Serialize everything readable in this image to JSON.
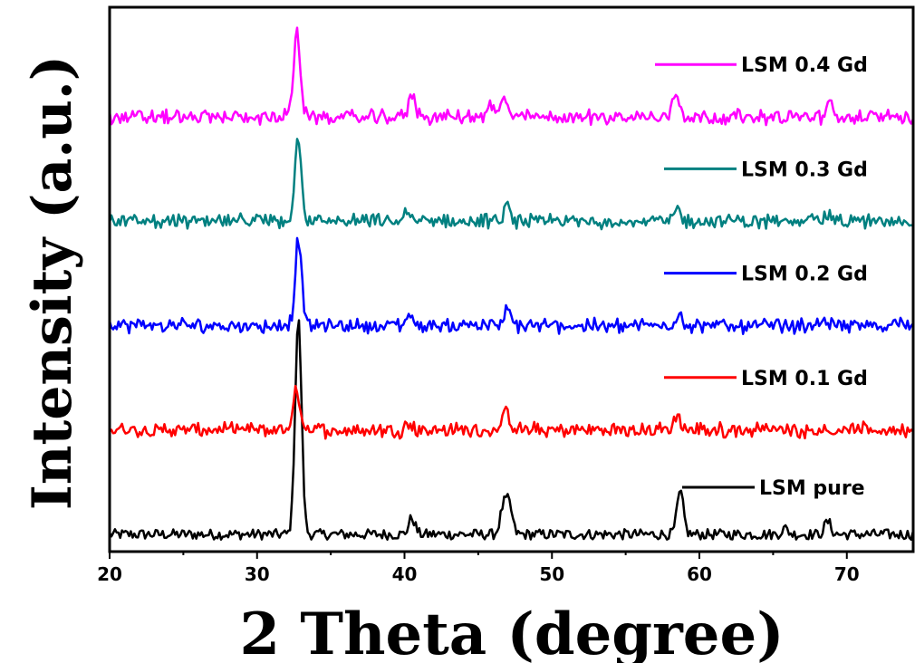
{
  "chart_data": {
    "type": "line",
    "xlabel": "2 Theta (degree)",
    "ylabel": "Intensity (a.u.)",
    "xlim": [
      20,
      74.5
    ],
    "x_ticks": [
      20,
      30,
      40,
      50,
      60,
      70
    ],
    "yticks_shown": false,
    "legend": "inline labels at right of each trace",
    "series": [
      {
        "name": "LSM pure",
        "color": "#000000",
        "baseline": 0,
        "peaks": [
          [
            32.8,
            18.5
          ],
          [
            40.5,
            1.4
          ],
          [
            46.7,
            2.2
          ],
          [
            47.1,
            2.4
          ],
          [
            58.7,
            3.6
          ],
          [
            68.7,
            1.1
          ],
          [
            65.8,
            0.5
          ]
        ]
      },
      {
        "name": "LSM 0.1 Gd",
        "color": "#ff0000",
        "baseline": 9,
        "peaks": [
          [
            32.7,
            3.5
          ],
          [
            40.3,
            0.6
          ],
          [
            46.9,
            1.5
          ],
          [
            58.5,
            1.2
          ],
          [
            64.3,
            0.4
          ]
        ]
      },
      {
        "name": "LSM 0.2 Gd",
        "color": "#0000ff",
        "baseline": 18,
        "peaks": [
          [
            32.8,
            7.5
          ],
          [
            40.3,
            0.9
          ],
          [
            44.5,
            0.5
          ],
          [
            47.0,
            1.3
          ],
          [
            58.6,
            1.2
          ],
          [
            68.2,
            0.5
          ],
          [
            73.7,
            0.7
          ]
        ]
      },
      {
        "name": "LSM 0.3 Gd",
        "color": "#008080",
        "baseline": 27,
        "peaks": [
          [
            32.8,
            7.3
          ],
          [
            40.2,
            0.8
          ],
          [
            47.0,
            1.2
          ],
          [
            58.5,
            1.1
          ],
          [
            67.6,
            0.9
          ],
          [
            68.7,
            0.6
          ]
        ]
      },
      {
        "name": "LSM 0.4 Gd",
        "color": "#ff00ff",
        "baseline": 36,
        "peaks": [
          [
            32.7,
            7.5
          ],
          [
            40.5,
            2.0
          ],
          [
            46.8,
            1.8
          ],
          [
            45.8,
            1.0
          ],
          [
            58.4,
            2.4
          ],
          [
            68.8,
            1.0
          ]
        ]
      }
    ]
  }
}
